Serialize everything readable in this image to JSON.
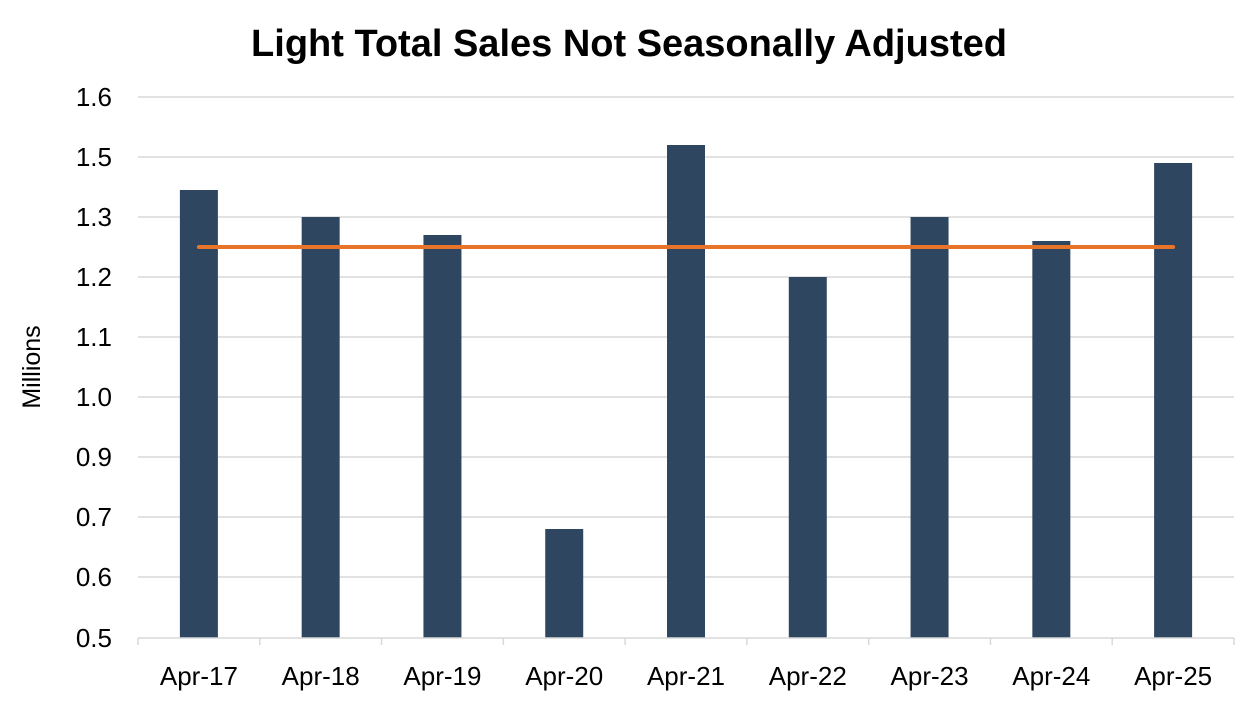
{
  "chart_data": {
    "type": "bar",
    "title": "Light Total Sales Not Seasonally Adjusted",
    "xlabel": "",
    "ylabel": "Millions",
    "categories": [
      "Apr-17",
      "Apr-18",
      "Apr-19",
      "Apr-20",
      "Apr-21",
      "Apr-22",
      "Apr-23",
      "Apr-24",
      "Apr-25"
    ],
    "series": [
      {
        "values": [
          1.39,
          1.3,
          1.27,
          0.68,
          1.52,
          1.2,
          1.3,
          1.26,
          1.48
        ],
        "color": "#2e4660"
      }
    ],
    "reference_line": {
      "value": 1.25,
      "color": "#e8742a"
    },
    "y_ticks": [
      "1.6",
      "1.5",
      "1.3",
      "1.2",
      "1.1",
      "1.0",
      "0.9",
      "0.7",
      "0.6",
      "0.5"
    ],
    "ylim": [
      0.5,
      1.6
    ],
    "grid": true,
    "legend": "none"
  }
}
